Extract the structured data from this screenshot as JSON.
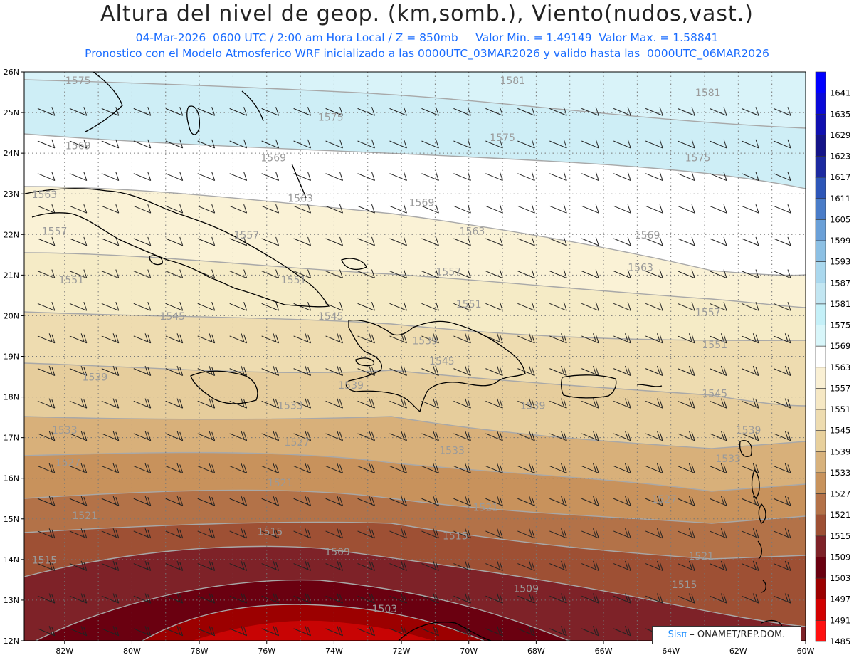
{
  "title": "Altura del nivel de geop. (km,somb.), Viento(nudos,vast.)",
  "subtitle_line1": "04-Mar-2026  0600 UTC / 2:00 am Hora Local / Z = 850mb     Valor Min. = 1.49149  Valor Max. = 1.58841",
  "subtitle_line2": "Pronostico con el Modelo Atmosferico WRF inicializado a las 0000UTC_03MAR2026 y valido hasta las  0000UTC_06MAR2026",
  "credit_brand": "Sisπ",
  "credit_org": "– ONAMET/REP.DOM.",
  "map": {
    "lat_labels": [
      "26N",
      "25N",
      "24N",
      "23N",
      "22N",
      "21N",
      "20N",
      "19N",
      "18N",
      "17N",
      "16N",
      "15N",
      "14N",
      "13N",
      "12N"
    ],
    "lon_labels": [
      "82W",
      "80W",
      "78W",
      "76W",
      "74W",
      "72W",
      "70W",
      "68W",
      "66W",
      "64W",
      "62W",
      "60W"
    ],
    "lat_range": [
      12,
      26
    ],
    "lon_range": [
      -83.2,
      -60
    ]
  },
  "colorbar": {
    "levels": [
      "1641",
      "1635",
      "1629",
      "1623",
      "1617",
      "1611",
      "1605",
      "1599",
      "1593",
      "1587",
      "1581",
      "1575",
      "1569",
      "1563",
      "1557",
      "1551",
      "1545",
      "1539",
      "1533",
      "1527",
      "1521",
      "1515",
      "1509",
      "1503",
      "1497",
      "1491",
      "1485"
    ],
    "colors": [
      "#0000ff",
      "#0a0ad8",
      "#1010b0",
      "#141488",
      "#1c2aa0",
      "#2d56b8",
      "#4a7cc8",
      "#6aa0d8",
      "#8cc0e4",
      "#aad8ee",
      "#c2e6f2",
      "#c4f0f8",
      "#d8f6fa",
      "#ffffff",
      "#faf0d4",
      "#f6e8c4",
      "#eedcb0",
      "#e8d09c",
      "#d8b27c",
      "#c8935c",
      "#b47248",
      "#9e5034",
      "#7e2228",
      "#6a0010",
      "#9c0000",
      "#d20000",
      "#ff1010"
    ]
  },
  "contour_labels": [
    {
      "text": "1575",
      "lon": -81.6,
      "lat": 25.7
    },
    {
      "text": "1575",
      "lon": -74.1,
      "lat": 24.8
    },
    {
      "text": "1575",
      "lon": -69.0,
      "lat": 24.3
    },
    {
      "text": "1575",
      "lon": -63.2,
      "lat": 23.8
    },
    {
      "text": "1581",
      "lon": -68.7,
      "lat": 25.7
    },
    {
      "text": "1581",
      "lon": -62.9,
      "lat": 25.4
    },
    {
      "text": "1569",
      "lon": -81.6,
      "lat": 24.1
    },
    {
      "text": "1569",
      "lon": -75.8,
      "lat": 23.8
    },
    {
      "text": "1569",
      "lon": -71.4,
      "lat": 22.7
    },
    {
      "text": "1569",
      "lon": -64.7,
      "lat": 21.9
    },
    {
      "text": "1563",
      "lon": -82.6,
      "lat": 22.9
    },
    {
      "text": "1563",
      "lon": -75.0,
      "lat": 22.8
    },
    {
      "text": "1563",
      "lon": -69.9,
      "lat": 22.0
    },
    {
      "text": "1563",
      "lon": -64.9,
      "lat": 21.1
    },
    {
      "text": "1557",
      "lon": -82.3,
      "lat": 22.0
    },
    {
      "text": "1557",
      "lon": -76.6,
      "lat": 21.9
    },
    {
      "text": "1557",
      "lon": -70.6,
      "lat": 21.0
    },
    {
      "text": "1557",
      "lon": -62.9,
      "lat": 20.0
    },
    {
      "text": "1551",
      "lon": -81.8,
      "lat": 20.8
    },
    {
      "text": "1551",
      "lon": -75.2,
      "lat": 20.8
    },
    {
      "text": "1551",
      "lon": -70.0,
      "lat": 20.2
    },
    {
      "text": "1551",
      "lon": -62.7,
      "lat": 19.2
    },
    {
      "text": "1545",
      "lon": -78.8,
      "lat": 19.9
    },
    {
      "text": "1545",
      "lon": -74.1,
      "lat": 19.9
    },
    {
      "text": "1545",
      "lon": -70.8,
      "lat": 18.8
    },
    {
      "text": "1545",
      "lon": -62.7,
      "lat": 18.0
    },
    {
      "text": "1539",
      "lon": -81.1,
      "lat": 18.4
    },
    {
      "text": "1539",
      "lon": -73.5,
      "lat": 18.2
    },
    {
      "text": "1539",
      "lon": -71.3,
      "lat": 19.3
    },
    {
      "text": "1539",
      "lon": -68.1,
      "lat": 17.7
    },
    {
      "text": "1539",
      "lon": -61.7,
      "lat": 17.1
    },
    {
      "text": "1533",
      "lon": -82.0,
      "lat": 17.1
    },
    {
      "text": "1533",
      "lon": -75.3,
      "lat": 17.7
    },
    {
      "text": "1533",
      "lon": -70.5,
      "lat": 16.6
    },
    {
      "text": "1533",
      "lon": -62.3,
      "lat": 16.4
    },
    {
      "text": "1527",
      "lon": -81.9,
      "lat": 16.3
    },
    {
      "text": "1527",
      "lon": -75.1,
      "lat": 16.8
    },
    {
      "text": "1527",
      "lon": -64.2,
      "lat": 15.4
    },
    {
      "text": "1521",
      "lon": -81.4,
      "lat": 15.0
    },
    {
      "text": "1521",
      "lon": -75.6,
      "lat": 15.8
    },
    {
      "text": "1521",
      "lon": -69.5,
      "lat": 15.2
    },
    {
      "text": "1521",
      "lon": -63.1,
      "lat": 14.0
    },
    {
      "text": "1515",
      "lon": -82.6,
      "lat": 13.9
    },
    {
      "text": "1515",
      "lon": -75.9,
      "lat": 14.6
    },
    {
      "text": "1515",
      "lon": -70.4,
      "lat": 14.5
    },
    {
      "text": "1515",
      "lon": -63.6,
      "lat": 13.3
    },
    {
      "text": "1509",
      "lon": -73.9,
      "lat": 14.1
    },
    {
      "text": "1509",
      "lon": -68.3,
      "lat": 13.2
    },
    {
      "text": "1503",
      "lon": -72.5,
      "lat": 12.7
    }
  ]
}
